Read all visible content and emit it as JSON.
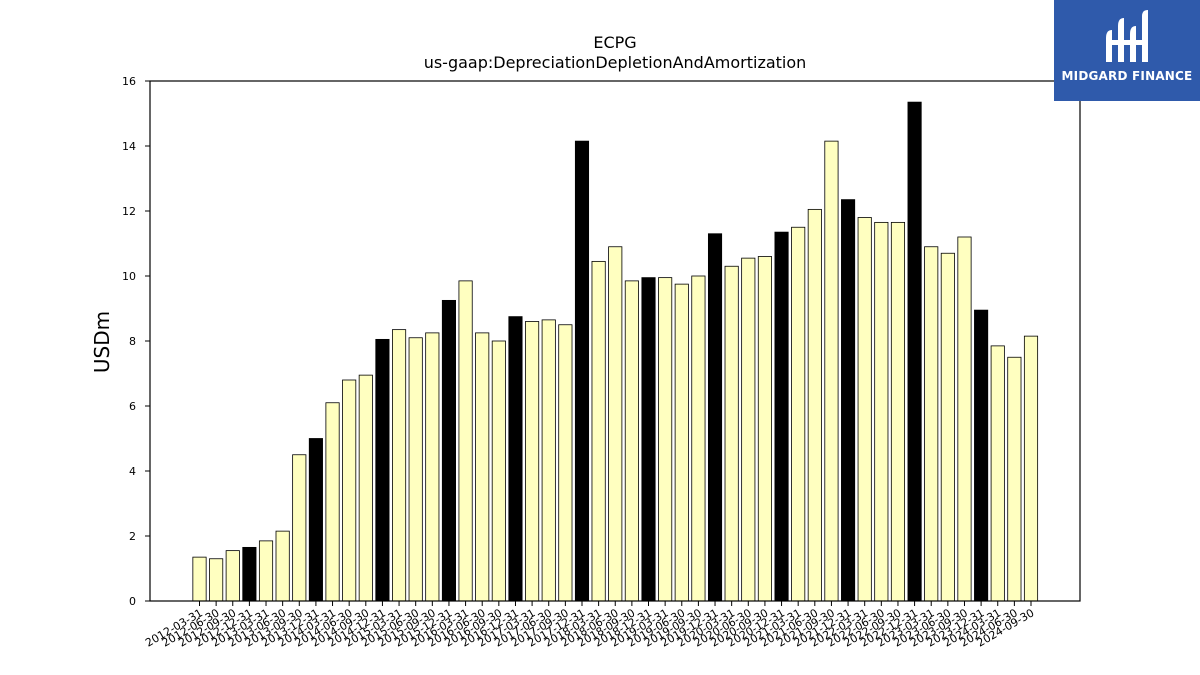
{
  "colors": {
    "normal": "#ffffc0",
    "q4": "#000000",
    "edge": "#000000",
    "logo_bg": "#2f5aab"
  },
  "logo": {
    "text": "MIDGARD FINANCE"
  },
  "chart_data": {
    "type": "bar",
    "title": "ECPG",
    "subtitle": "us-gaap:DepreciationDepletionAndAmortization",
    "xlabel": "",
    "ylabel": "USDm",
    "ylim": [
      0,
      16
    ],
    "yticks": [
      0,
      2,
      4,
      6,
      8,
      10,
      12,
      14,
      16
    ],
    "grid": false,
    "categories": [
      "2012-03-31",
      "2012-06-30",
      "2012-09-30",
      "2012-12-31",
      "2013-03-31",
      "2013-06-30",
      "2013-09-30",
      "2013-12-31",
      "2014-03-31",
      "2014-06-30",
      "2014-09-30",
      "2014-12-31",
      "2015-03-31",
      "2015-06-30",
      "2015-09-30",
      "2015-12-31",
      "2016-03-31",
      "2016-06-30",
      "2016-09-30",
      "2016-12-31",
      "2017-03-31",
      "2017-06-30",
      "2017-09-30",
      "2017-12-31",
      "2018-03-31",
      "2018-06-30",
      "2018-09-30",
      "2018-12-31",
      "2019-03-31",
      "2019-06-30",
      "2019-09-30",
      "2019-12-31",
      "2020-03-31",
      "2020-06-30",
      "2020-09-30",
      "2020-12-31",
      "2021-03-31",
      "2021-06-30",
      "2021-09-30",
      "2021-12-31",
      "2022-03-31",
      "2022-06-30",
      "2022-09-30",
      "2022-12-31",
      "2023-03-31",
      "2023-06-30",
      "2023-09-30",
      "2023-12-31",
      "2024-03-31",
      "2024-06-30",
      "2024-09-30"
    ],
    "values": [
      1.35,
      1.3,
      1.55,
      1.65,
      1.85,
      2.15,
      4.5,
      5.0,
      6.1,
      6.8,
      6.95,
      8.05,
      8.35,
      8.1,
      8.25,
      9.25,
      9.85,
      8.25,
      8.0,
      8.75,
      8.6,
      8.65,
      8.5,
      14.15,
      10.45,
      10.9,
      9.85,
      9.95,
      9.95,
      9.75,
      10.0,
      11.3,
      10.3,
      10.55,
      10.6,
      11.35,
      11.5,
      12.05,
      14.15,
      12.35,
      11.8,
      11.65,
      11.65,
      15.35,
      10.9,
      10.7,
      11.2,
      8.95,
      7.85,
      7.5,
      8.15
    ],
    "highlight": "december-quarter bars drawn black"
  }
}
